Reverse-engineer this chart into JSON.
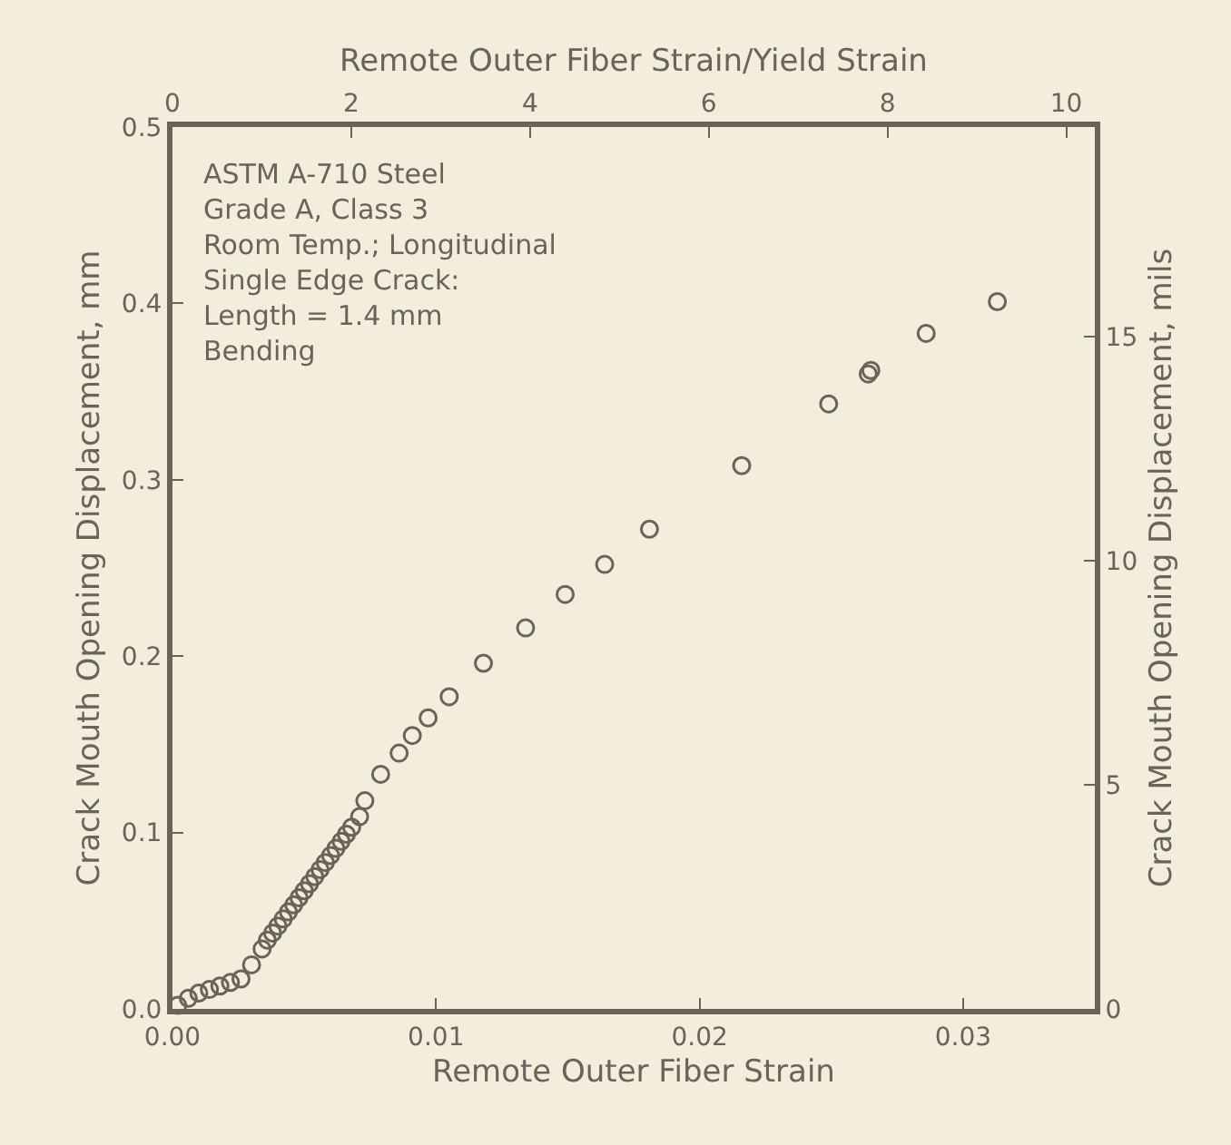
{
  "chart_data": {
    "type": "scatter",
    "xlabel": "Remote Outer Fiber Strain",
    "ylabel": "Crack Mouth Opening Displacement, mm",
    "y2label": "Crack Mouth Opening Displacement, mils",
    "x2label": "Remote Outer Fiber Strain/Yield Strain",
    "annotations": [
      "ASTM A-710 Steel\nGrade A, Class 3\nRoom Temp.; Longitudinal\nSingle Edge Crack:\nLength = 1.4 mm\nBending"
    ],
    "series": [
      {
        "color": "#6b6259",
        "x": [
          0.0002,
          0.0006,
          0.001,
          0.0014,
          0.0018,
          0.0022,
          0.0026,
          0.003,
          0.0034,
          0.0036,
          0.0038,
          0.004,
          0.0042,
          0.0044,
          0.0046,
          0.0048,
          0.005,
          0.0052,
          0.0054,
          0.0056,
          0.0058,
          0.006,
          0.0062,
          0.0064,
          0.0066,
          0.0068,
          0.0071,
          0.0073,
          0.0079,
          0.0086,
          0.0091,
          0.0097,
          0.0105,
          0.0118,
          0.0134,
          0.0149,
          0.0164,
          0.0181,
          0.0216,
          0.0249,
          0.0264,
          0.0265,
          0.0286,
          0.0313
        ],
        "values": [
          0.002,
          0.006,
          0.009,
          0.011,
          0.013,
          0.015,
          0.017,
          0.025,
          0.034,
          0.039,
          0.043,
          0.047,
          0.051,
          0.055,
          0.059,
          0.063,
          0.067,
          0.071,
          0.075,
          0.079,
          0.083,
          0.087,
          0.091,
          0.095,
          0.099,
          0.103,
          0.109,
          0.118,
          0.133,
          0.145,
          0.155,
          0.165,
          0.177,
          0.196,
          0.216,
          0.235,
          0.252,
          0.272,
          0.308,
          0.343,
          0.36,
          0.362,
          0.383,
          0.401
        ]
      }
    ],
    "xlim": [
      0,
      0.035
    ],
    "xticks": [
      {
        "value": 0,
        "label": "0.00"
      },
      0.01,
      0.02,
      0.03
    ],
    "ylim": [
      0,
      0.5
    ],
    "yticks": [
      {
        "value": 0,
        "label": "0.0"
      },
      0.1,
      0.2,
      0.3,
      0.4,
      0.5
    ],
    "y2lim": [
      0,
      19.685
    ],
    "y2ticks": [
      0,
      5,
      10,
      15
    ],
    "x2lim": [
      0,
      10.32
    ],
    "x2ticks": [
      0,
      2,
      4,
      6,
      8,
      10
    ],
    "marker": "circle"
  }
}
